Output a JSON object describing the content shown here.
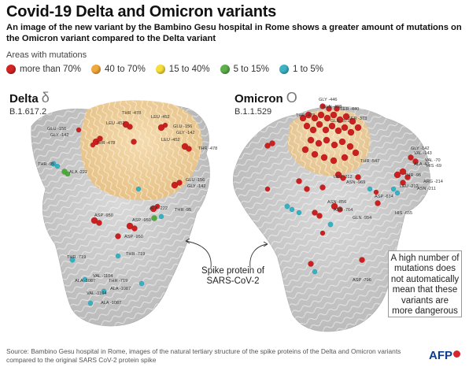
{
  "title": "Covid-19 Delta and Omicron variants",
  "subtitle": "An image of the new variant by the Bambino Gesu hospital in Rome shows a greater amount of mutations on the Omicron variant compared to the Delta variant",
  "legend": {
    "title": "Areas with mutations",
    "items": [
      {
        "label": "more than 70%",
        "color": "#d42424"
      },
      {
        "label": "40 to 70%",
        "color": "#f2a93b"
      },
      {
        "label": "15 to 40%",
        "color": "#f7df3a"
      },
      {
        "label": "5 to 15%",
        "color": "#5db04a"
      },
      {
        "label": "1 to 5%",
        "color": "#3cb4c6"
      }
    ]
  },
  "delta": {
    "name": "Delta",
    "symbol": "δ",
    "code": "B.1.617.2",
    "labels": [
      "GLU -156",
      "GLY -142",
      "THR -478",
      "LEU -452",
      "LEU -452",
      "GLU -156",
      "GLY -142",
      "THR -478",
      "THR -478",
      "LEU -452",
      "THR -95",
      "ALA -222",
      "GLU -156",
      "GLY -142",
      "ALA -222",
      "THR -95",
      "ASP -950",
      "ASP -950",
      "ASP -950",
      "THR -719",
      "THR -719",
      "VAL -1104",
      "ALA -1087",
      "THR -719",
      "ALA -1087",
      "VAL -1104",
      "ALA -1087"
    ]
  },
  "omicron": {
    "name": "Omicron",
    "symbol": "O",
    "code": "B.1.1.529",
    "labels": [
      "GLY -446",
      "GLN -498",
      "SER -440",
      "GLN -371",
      "SER -373",
      "THR -478",
      "THR -547",
      "LEU -212",
      "ASN -969",
      "ASN -856",
      "ASN -764",
      "GLN -954",
      "ASP -614",
      "HIS -655",
      "ASP -796",
      "GLY -142",
      "VAL -143",
      "VAL -70",
      "ALA -67",
      "HIS -69",
      "THR -95",
      "ARG -214",
      "ASN -211",
      "LEU -212"
    ]
  },
  "callout": "Spike protein of SARS-CoV-2",
  "note": "A high number of mutations does not automatically mean that these variants are more dangerous",
  "source": "Source: Bambino Gesu hospital in Rome, images of the natural tertiary structure of the spike proteins of the Delta and Omicron variants compared to the original SARS CoV-2 protein spike",
  "logo": "AFP"
}
